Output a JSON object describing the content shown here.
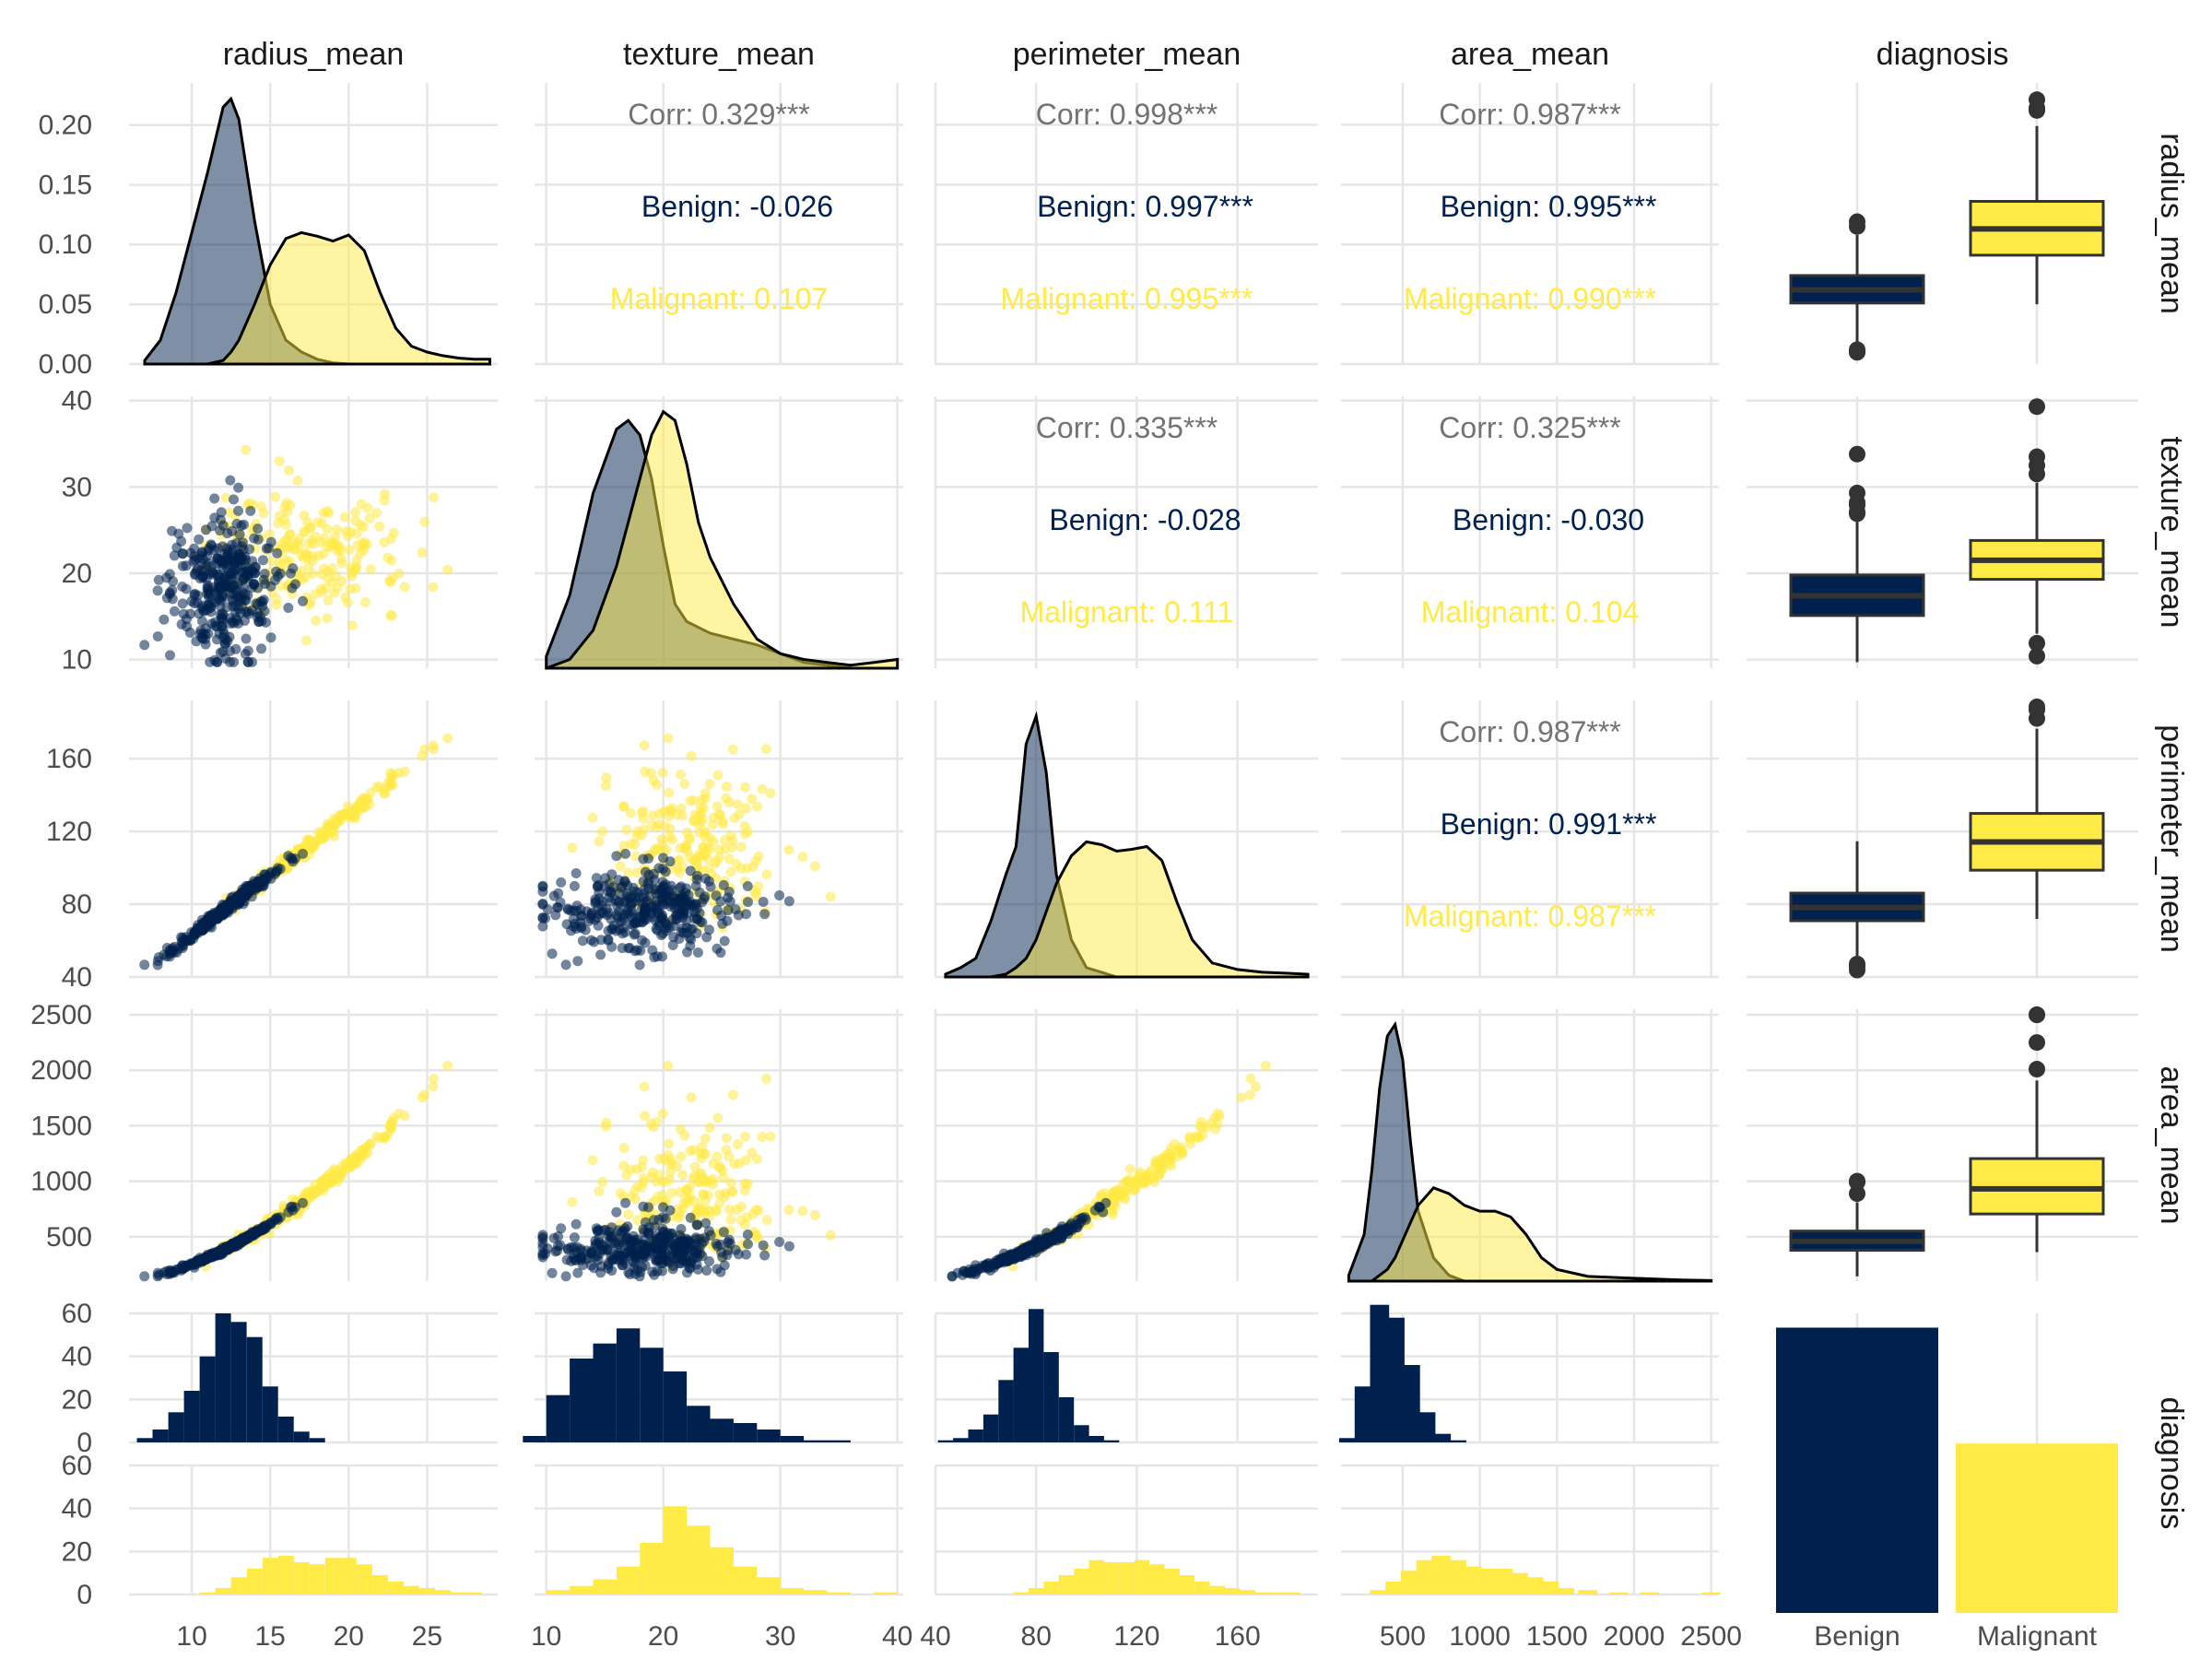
{
  "colors": {
    "benign": "#00204D",
    "malignant": "#FFEA46",
    "corr_total": "#737373",
    "grid": "#e6e6e6",
    "text": "#4d4d4d",
    "strip": "#1a1a1a"
  },
  "variables": [
    "radius_mean",
    "texture_mean",
    "perimeter_mean",
    "area_mean",
    "diagnosis"
  ],
  "chart_data": {
    "type": "scatter",
    "layout": "pairs-matrix",
    "groups": [
      "Benign",
      "Malignant"
    ],
    "axes": {
      "radius_mean": {
        "range": [
          6.0,
          29.5
        ],
        "ticks": [
          10,
          15,
          20,
          25
        ]
      },
      "texture_mean": {
        "range": [
          9.0,
          40.5
        ],
        "ticks": [
          10,
          20,
          30,
          40
        ],
        "row_ticks": [
          10,
          20,
          30,
          40
        ]
      },
      "perimeter_mean": {
        "range": [
          40,
          192
        ],
        "ticks": [
          40,
          80,
          120,
          160
        ],
        "row_ticks": [
          40,
          80,
          120,
          160
        ]
      },
      "area_mean": {
        "range": [
          100,
          2550
        ],
        "ticks": [
          500,
          1000,
          1500,
          2000,
          2500
        ],
        "row_ticks": [
          500,
          1000,
          1500,
          2000,
          2500
        ]
      },
      "density_y": {
        "range": [
          0,
          0.235
        ],
        "ticks": [
          0.0,
          0.05,
          0.1,
          0.15,
          0.2
        ],
        "tick_labels": [
          "0.00",
          "0.05",
          "0.10",
          "0.15",
          "0.20"
        ]
      },
      "count_y": {
        "range": [
          0,
          60
        ],
        "ticks": [
          0,
          20,
          40,
          60
        ]
      },
      "diagnosis": {
        "categories": [
          "Benign",
          "Malignant"
        ]
      }
    },
    "correlations": [
      {
        "row": 0,
        "col": 1,
        "corr": "Corr: 0.329***",
        "benign": "Benign: -0.026",
        "malignant": "Malignant: 0.107"
      },
      {
        "row": 0,
        "col": 2,
        "corr": "Corr: 0.998***",
        "benign": "Benign: 0.997***",
        "malignant": "Malignant: 0.995***"
      },
      {
        "row": 0,
        "col": 3,
        "corr": "Corr: 0.987***",
        "benign": "Benign: 0.995***",
        "malignant": "Malignant: 0.990***"
      },
      {
        "row": 1,
        "col": 2,
        "corr": "Corr: 0.335***",
        "benign": "Benign: -0.028",
        "malignant": "Malignant: 0.111"
      },
      {
        "row": 1,
        "col": 3,
        "corr": "Corr: 0.325***",
        "benign": "Benign: -0.030",
        "malignant": "Malignant: 0.104"
      },
      {
        "row": 2,
        "col": 3,
        "corr": "Corr: 0.987***",
        "benign": "Benign: 0.991***",
        "malignant": "Malignant: 0.987***"
      }
    ],
    "densities": {
      "radius_mean": {
        "x": [
          7,
          8,
          9,
          10,
          11,
          12,
          12.5,
          13,
          14,
          15,
          16,
          17,
          18,
          19,
          20,
          21,
          22,
          23,
          24,
          25,
          26,
          27,
          28,
          29
        ],
        "benign": [
          0.003,
          0.02,
          0.06,
          0.11,
          0.16,
          0.215,
          0.222,
          0.205,
          0.12,
          0.05,
          0.02,
          0.01,
          0.004,
          0.001,
          0,
          0,
          0,
          0,
          0,
          0,
          0,
          0,
          0,
          0
        ],
        "malignant": [
          0,
          0,
          0,
          0,
          0,
          0.003,
          0.01,
          0.02,
          0.05,
          0.083,
          0.105,
          0.11,
          0.107,
          0.103,
          0.108,
          0.095,
          0.06,
          0.03,
          0.015,
          0.01,
          0.007,
          0.005,
          0.004,
          0.004
        ]
      },
      "texture_mean": {
        "x": [
          10,
          12,
          14,
          16,
          17,
          18,
          19,
          20,
          21,
          22,
          23,
          24,
          26,
          28,
          30,
          32,
          34,
          36,
          38,
          40
        ],
        "benign": [
          0.004,
          0.025,
          0.06,
          0.082,
          0.085,
          0.08,
          0.065,
          0.042,
          0.022,
          0.016,
          0.014,
          0.012,
          0.01,
          0.008,
          0.005,
          0.002,
          0.001,
          0,
          0,
          0
        ],
        "malignant": [
          0,
          0.003,
          0.013,
          0.035,
          0.05,
          0.065,
          0.08,
          0.088,
          0.085,
          0.07,
          0.05,
          0.038,
          0.022,
          0.01,
          0.005,
          0.003,
          0.002,
          0.001,
          0.002,
          0.003
        ]
      },
      "perimeter_mean": {
        "x": [
          44,
          50,
          56,
          62,
          68,
          72,
          76,
          80,
          84,
          88,
          94,
          100,
          106,
          112,
          118,
          124,
          130,
          136,
          142,
          150,
          160,
          170,
          180,
          188
        ],
        "benign": [
          0.0003,
          0.001,
          0.002,
          0.006,
          0.011,
          0.014,
          0.025,
          0.028,
          0.022,
          0.011,
          0.004,
          0.001,
          0.0005,
          0,
          0,
          0,
          0,
          0,
          0,
          0,
          0,
          0,
          0,
          0
        ],
        "malignant": [
          0,
          0,
          0,
          0,
          0.0003,
          0.001,
          0.002,
          0.004,
          0.007,
          0.01,
          0.013,
          0.0145,
          0.0142,
          0.0135,
          0.0137,
          0.014,
          0.0125,
          0.008,
          0.004,
          0.0015,
          0.0008,
          0.0005,
          0.0004,
          0.0003
        ]
      },
      "area_mean": {
        "x": [
          150,
          250,
          300,
          350,
          400,
          450,
          500,
          550,
          600,
          700,
          800,
          900,
          1000,
          1100,
          1200,
          1300,
          1400,
          1500,
          1700,
          1900,
          2100,
          2300,
          2500
        ],
        "benign": [
          0.0001,
          0.0008,
          0.0019,
          0.0033,
          0.0042,
          0.0044,
          0.0038,
          0.0024,
          0.0012,
          0.0004,
          0.0001,
          0,
          0,
          0,
          0,
          0,
          0,
          0,
          0,
          0,
          0,
          0,
          0
        ],
        "malignant": [
          0,
          0,
          0,
          0.0001,
          0.0002,
          0.0004,
          0.0007,
          0.001,
          0.0013,
          0.0016,
          0.0015,
          0.0013,
          0.0012,
          0.0012,
          0.0011,
          0.0008,
          0.0004,
          0.0002,
          8e-05,
          6e-05,
          4e-05,
          2e-05,
          1e-05
        ]
      }
    },
    "scatter_model": {
      "benign_means": {
        "radius_mean": 12.15,
        "texture_mean": 17.9,
        "perimeter_mean": 78.1,
        "area_mean": 463
      },
      "malignant_means": {
        "radius_mean": 17.5,
        "texture_mean": 21.6,
        "perimeter_mean": 115.4,
        "area_mean": 978
      },
      "benign_sd": {
        "radius_mean": 1.78,
        "texture_mean": 4.0
      },
      "malignant_sd": {
        "radius_mean": 3.2,
        "texture_mean": 3.8
      },
      "benign_n": 357,
      "malignant_n": 212
    },
    "boxplots": {
      "radius_mean": {
        "Benign": {
          "q1": 11.1,
          "med": 12.2,
          "q3": 13.4,
          "lo": 7.7,
          "hi": 16.8,
          "out": [
            17.9,
            17.5,
            7.0,
            6.98,
            7.2
          ]
        },
        "Malignant": {
          "q1": 15.1,
          "med": 17.3,
          "q3": 19.6,
          "lo": 11.0,
          "hi": 25.9,
          "out": [
            27.2,
            28.1,
            27.4
          ]
        }
      },
      "texture_mean": {
        "Benign": {
          "q1": 15.1,
          "med": 17.4,
          "q3": 19.8,
          "lo": 9.7,
          "hi": 26.5,
          "out": [
            26.9,
            27.1,
            27.9,
            28.2,
            29.3,
            33.8
          ]
        },
        "Malignant": {
          "q1": 19.3,
          "med": 21.5,
          "q3": 23.8,
          "lo": 13.0,
          "hi": 30.5,
          "out": [
            31.5,
            32.5,
            33.5,
            39.3,
            10.4,
            11.9
          ]
        }
      },
      "perimeter_mean": {
        "Benign": {
          "q1": 70.9,
          "med": 78.2,
          "q3": 86.1,
          "lo": 48.3,
          "hi": 114.6,
          "out": [
            43.8,
            45.8,
            47.1
          ]
        },
        "Malignant": {
          "q1": 98.7,
          "med": 114.2,
          "q3": 129.9,
          "lo": 71.9,
          "hi": 176.5,
          "out": [
            182.1,
            186.9,
            188.5
          ]
        }
      },
      "area_mean": {
        "Benign": {
          "q1": 378,
          "med": 458,
          "q3": 551,
          "lo": 143,
          "hi": 810,
          "out": [
            992,
            1001,
            889
          ]
        },
        "Malignant": {
          "q1": 705,
          "med": 932,
          "q3": 1204,
          "lo": 361,
          "hi": 1907,
          "out": [
            2010,
            2250,
            2499,
            2501
          ]
        }
      }
    },
    "facet_histograms": {
      "radius_mean": {
        "bins": [
          7,
          8,
          9,
          10,
          11,
          12,
          13,
          14,
          15,
          16,
          17,
          18,
          19,
          20,
          21,
          22,
          23,
          24,
          25,
          26,
          27,
          28
        ],
        "benign": [
          2,
          6,
          14,
          24,
          40,
          60,
          56,
          49,
          26,
          12,
          5,
          2,
          0,
          0,
          0,
          0,
          0,
          0,
          0,
          0,
          0,
          0
        ],
        "malignant": [
          0,
          0,
          0,
          0,
          1,
          3,
          8,
          12,
          17,
          18,
          15,
          14,
          17,
          17,
          14,
          9,
          6,
          4,
          3,
          2,
          1,
          1
        ]
      },
      "texture_mean": {
        "bins": [
          9,
          11,
          13,
          15,
          17,
          19,
          21,
          23,
          25,
          27,
          29,
          31,
          33,
          35,
          37,
          39
        ],
        "benign": [
          3,
          22,
          39,
          46,
          53,
          44,
          33,
          17,
          11,
          9,
          6,
          3,
          1,
          1,
          0,
          0
        ],
        "malignant": [
          0,
          2,
          4,
          7,
          13,
          24,
          41,
          32,
          22,
          13,
          8,
          3,
          2,
          1,
          0,
          1
        ]
      },
      "perimeter_mean": {
        "bins": [
          44,
          50,
          56,
          62,
          68,
          74,
          80,
          86,
          92,
          98,
          104,
          110,
          116,
          122,
          128,
          134,
          140,
          146,
          152,
          158,
          164,
          170,
          176,
          182
        ],
        "benign": [
          1,
          2,
          6,
          13,
          29,
          44,
          62,
          42,
          21,
          8,
          3,
          1,
          0,
          0,
          0,
          0,
          0,
          0,
          0,
          0,
          0,
          0,
          0,
          0
        ],
        "malignant": [
          0,
          0,
          0,
          0,
          0,
          1,
          3,
          6,
          9,
          12,
          16,
          15,
          15,
          16,
          14,
          12,
          9,
          6,
          4,
          3,
          2,
          1,
          1,
          1
        ]
      },
      "area_mean": {
        "bins": [
          150,
          250,
          350,
          450,
          550,
          650,
          750,
          850,
          950,
          1050,
          1150,
          1250,
          1350,
          1450,
          1550,
          1700,
          1900,
          2100,
          2300,
          2500
        ],
        "benign": [
          2,
          26,
          64,
          58,
          36,
          14,
          4,
          1,
          0,
          0,
          0,
          0,
          0,
          0,
          0,
          0,
          0,
          0,
          0,
          0
        ],
        "malignant": [
          0,
          0,
          2,
          6,
          11,
          16,
          18,
          16,
          13,
          12,
          12,
          10,
          8,
          6,
          3,
          2,
          1,
          1,
          0,
          1
        ]
      }
    },
    "diagnosis_counts": {
      "Benign": 357,
      "Malignant": 212
    },
    "title": "",
    "xlabel": "",
    "ylabel": ""
  }
}
